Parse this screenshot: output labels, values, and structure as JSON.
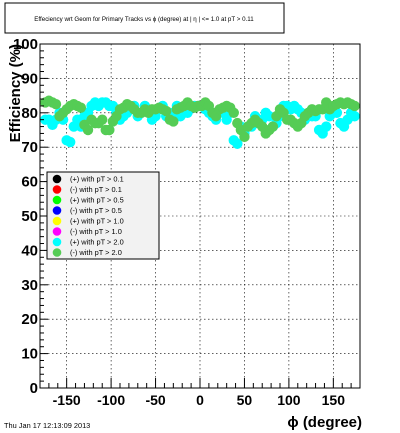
{
  "timestamp": "Thu Jan 17 12:13:09 2013",
  "chart_data": {
    "type": "scatter",
    "title": "Effeciency wrt Geom for Primary Tracks vs ϕ (degree) at | η | <= 1.0 at pT > 0.11",
    "xlabel": "ϕ (degree)",
    "ylabel": "Efficiency (%)",
    "xlim": [
      -180,
      180
    ],
    "ylim": [
      0,
      100
    ],
    "xticks": [
      -150,
      -100,
      -50,
      0,
      50,
      100,
      150
    ],
    "yticks": [
      0,
      10,
      20,
      30,
      40,
      50,
      60,
      70,
      80,
      90,
      100
    ],
    "grid": true,
    "legend_position": "middle-left",
    "series": [
      {
        "name": "(+) with pT > 0.1",
        "color": "#000000",
        "x": [],
        "y": []
      },
      {
        "name": "(-) with pT > 0.1",
        "color": "#ff0000",
        "x": [],
        "y": []
      },
      {
        "name": "(+) with pT > 0.5",
        "color": "#00ff00",
        "x": [],
        "y": []
      },
      {
        "name": "(-) with pT > 0.5",
        "color": "#0000ff",
        "x": [],
        "y": []
      },
      {
        "name": "(+) with pT > 1.0",
        "color": "#ffff00",
        "x": [],
        "y": []
      },
      {
        "name": "(-) with pT > 1.0",
        "color": "#ff00ff",
        "x": [],
        "y": []
      },
      {
        "name": "(+) with pT > 2.0",
        "color": "#00ffff",
        "x": [
          -174,
          -170,
          -166,
          -162,
          -158,
          -154,
          -150,
          -146,
          -142,
          -138,
          -134,
          -130,
          -126,
          -122,
          -118,
          -114,
          -110,
          -106,
          -102,
          -98,
          -94,
          -90,
          -86,
          -82,
          -78,
          -74,
          -70,
          -66,
          -62,
          -58,
          -54,
          -50,
          -46,
          -42,
          -38,
          -34,
          -30,
          -26,
          -22,
          -18,
          -14,
          -10,
          -6,
          -2,
          2,
          6,
          10,
          14,
          18,
          22,
          26,
          30,
          34,
          38,
          42,
          46,
          50,
          54,
          58,
          62,
          66,
          70,
          74,
          78,
          82,
          86,
          90,
          94,
          98,
          102,
          106,
          110,
          114,
          118,
          122,
          126,
          130,
          134,
          138,
          142,
          146,
          150,
          154,
          158,
          162,
          166,
          170,
          174
        ],
        "y": [
          78,
          78,
          76.5,
          78,
          80,
          78,
          72,
          71.5,
          76,
          78,
          76,
          79,
          80,
          82,
          83,
          82,
          83,
          83,
          82,
          82,
          80,
          78,
          79,
          80,
          81,
          82,
          79,
          80,
          82,
          80,
          78,
          79,
          81,
          82,
          79,
          80,
          80,
          82,
          79,
          80,
          80,
          82,
          82,
          82,
          82,
          81,
          80,
          79,
          78,
          80,
          80,
          78,
          80,
          72,
          71,
          76,
          74,
          76,
          76,
          79,
          77,
          78,
          80,
          79,
          76,
          77,
          79,
          82,
          82,
          81,
          82,
          81,
          80,
          78,
          80,
          79,
          79,
          75,
          74,
          76,
          79,
          80,
          80,
          77,
          76,
          78,
          80,
          79
        ]
      },
      {
        "name": "(-) with pT > 2.0",
        "color": "#55cc55",
        "x": [
          -174,
          -170,
          -166,
          -162,
          -158,
          -154,
          -150,
          -146,
          -142,
          -138,
          -134,
          -130,
          -126,
          -122,
          -118,
          -114,
          -110,
          -106,
          -102,
          -98,
          -94,
          -90,
          -86,
          -82,
          -78,
          -74,
          -70,
          -66,
          -62,
          -58,
          -54,
          -50,
          -46,
          -42,
          -38,
          -34,
          -30,
          -26,
          -22,
          -18,
          -14,
          -10,
          -6,
          -2,
          2,
          6,
          10,
          14,
          18,
          22,
          26,
          30,
          34,
          38,
          42,
          46,
          50,
          54,
          58,
          62,
          66,
          70,
          74,
          78,
          82,
          86,
          90,
          94,
          98,
          102,
          106,
          110,
          114,
          118,
          122,
          126,
          130,
          134,
          138,
          142,
          146,
          150,
          154,
          158,
          162,
          166,
          170,
          174
        ],
        "y": [
          83,
          83.5,
          83,
          82.5,
          79,
          80,
          81,
          82,
          82.5,
          82,
          81.5,
          76.5,
          75,
          78,
          77,
          77,
          78,
          75,
          75,
          77.5,
          79,
          81,
          81.5,
          82.5,
          82,
          81,
          80,
          80,
          81,
          80,
          81,
          81,
          81.5,
          81,
          80.5,
          78,
          77.5,
          81,
          81.5,
          82,
          83,
          82,
          81.5,
          82,
          82,
          83,
          82,
          80,
          79,
          81,
          81.5,
          82,
          81.5,
          80,
          77,
          75,
          73,
          76,
          77,
          78,
          77,
          76,
          74,
          75,
          76,
          79,
          81,
          80,
          78,
          78,
          77,
          76,
          77,
          79,
          80,
          81,
          80.5,
          81,
          81,
          83,
          81,
          82,
          82.5,
          83,
          82.5,
          83,
          82.5,
          82
        ]
      }
    ]
  }
}
